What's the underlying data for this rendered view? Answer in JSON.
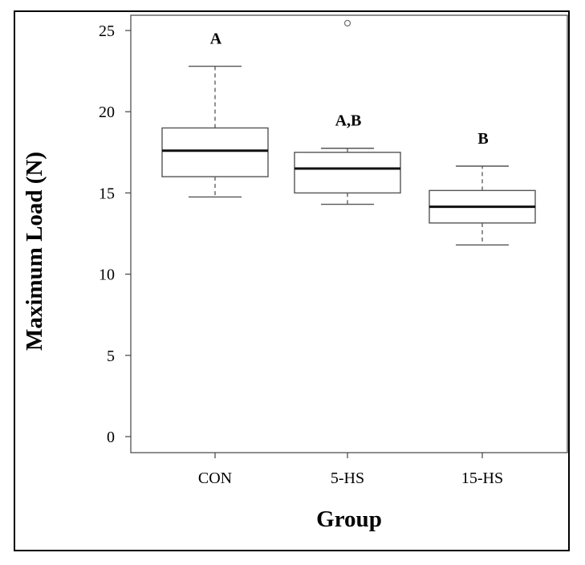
{
  "chart_data": {
    "type": "boxplot",
    "title": "",
    "xlabel": "Group",
    "ylabel": "Maximum Load (N)",
    "categories": [
      "CON",
      "5-HS",
      "15-HS"
    ],
    "ylim": [
      -1,
      26
    ],
    "yticks": [
      0,
      5,
      10,
      15,
      20,
      25
    ],
    "grid": false,
    "boxes": [
      {
        "category": "CON",
        "whisker_low": 14.75,
        "q1": 16.0,
        "median": 17.6,
        "q3": 19.0,
        "whisker_high": 22.8,
        "outliers": [],
        "letter": "A"
      },
      {
        "category": "5-HS",
        "whisker_low": 14.3,
        "q1": 15.0,
        "median": 16.5,
        "q3": 17.5,
        "whisker_high": 17.75,
        "outliers": [
          25.45
        ],
        "letter": "A,B"
      },
      {
        "category": "15-HS",
        "whisker_low": 11.8,
        "q1": 13.15,
        "median": 14.15,
        "q3": 15.15,
        "whisker_high": 16.65,
        "outliers": [],
        "letter": "B"
      }
    ],
    "colors": {
      "box_stroke": "#555555",
      "median": "#111111",
      "axis": "#444444",
      "frame": "#000000"
    }
  }
}
